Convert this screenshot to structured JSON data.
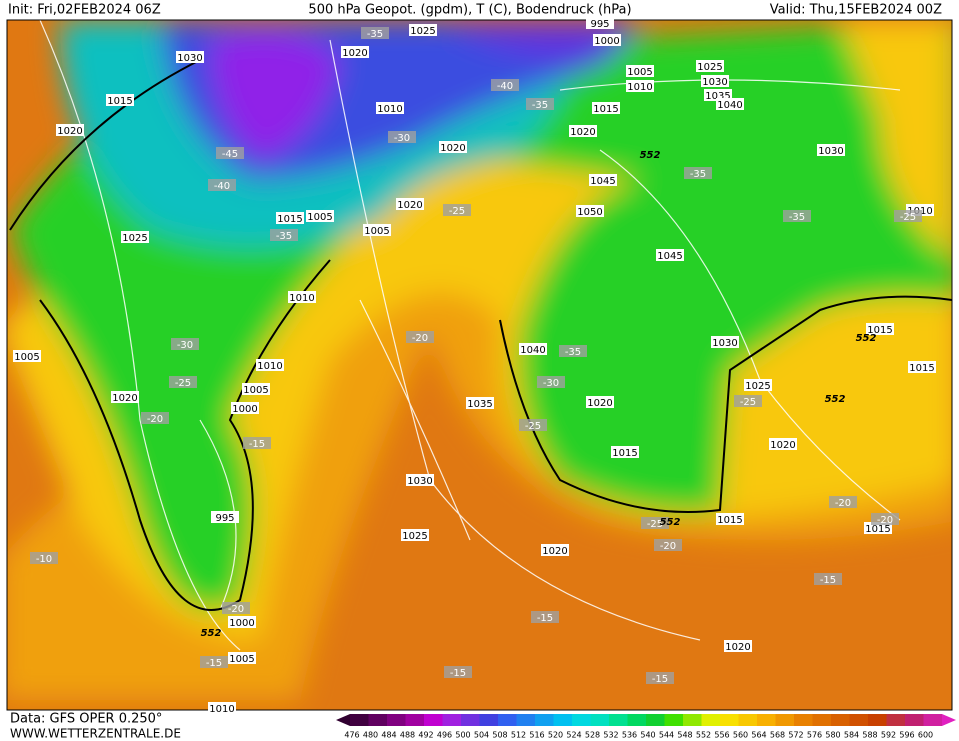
{
  "header": {
    "init": "Init: Fri,02FEB2024 06Z",
    "title": "500 hPa Geopot. (gpdm), T (C), Bodendruck (hPa)",
    "valid": "Valid: Thu,15FEB2024 00Z"
  },
  "footer": {
    "data": "Data: GFS OPER 0.250°",
    "site": "WWW.WETTERZENTRALE.DE"
  },
  "isobar_labels": [
    1030,
    1015,
    1020,
    1025,
    1010,
    1005,
    1020,
    1010,
    1005,
    1000,
    995,
    1000,
    1005,
    1010,
    1020,
    1025,
    1010,
    1020,
    1015,
    1005,
    1005,
    1020,
    995,
    1000,
    1005,
    1010,
    1025,
    1030,
    1035,
    1040,
    1015,
    1020,
    1030,
    1045,
    1050,
    1045,
    1040,
    1030,
    1035,
    1020,
    1015,
    1025,
    1020,
    1030,
    1025,
    1020,
    1015,
    1015,
    1015,
    1015,
    1010,
    1020
  ],
  "temperature_labels": [
    -35,
    -40,
    -35,
    -30,
    -45,
    -40,
    -35,
    -25,
    -35,
    -35,
    -25,
    -30,
    -25,
    -20,
    -20,
    -35,
    -30,
    -25,
    -25,
    -15,
    -20,
    -20,
    -25,
    -20,
    -10,
    -20,
    -15,
    -15,
    -15,
    -15,
    -15
  ],
  "height_labels": [
    552,
    552,
    552,
    552,
    552
  ],
  "legend": {
    "scale": [
      476,
      480,
      484,
      488,
      492,
      496,
      500,
      504,
      508,
      512,
      516,
      520,
      524,
      528,
      532,
      536,
      540,
      544,
      548,
      552,
      556,
      560,
      564,
      568,
      572,
      576,
      580,
      584,
      588,
      592,
      596,
      600
    ]
  }
}
